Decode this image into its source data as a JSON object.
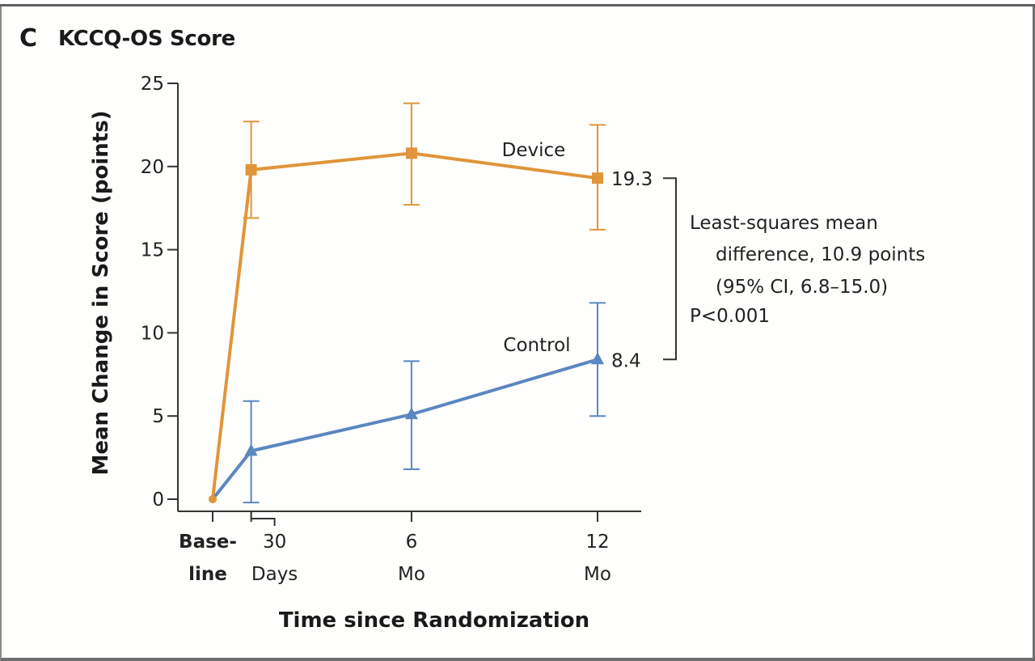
{
  "panel": {
    "letter": "C",
    "title": "KCCQ-OS Score"
  },
  "colors": {
    "device": "#e0953a",
    "control": "#5b87c0",
    "axis": "#333333",
    "text": "#222222"
  },
  "chart_data": {
    "type": "line",
    "title": "KCCQ-OS Score",
    "xlabel": "Time since Randomization",
    "ylabel": "Mean Change in Score (points)",
    "ylim": [
      0,
      25
    ],
    "yticks": [
      0,
      5,
      10,
      15,
      20,
      25
    ],
    "grid": false,
    "categories": [
      {
        "label_line1": "Base-",
        "label_line2": "line",
        "bold": true,
        "months": 0
      },
      {
        "label_line1": "30",
        "label_line2": "Days",
        "bold": false,
        "months": 1.2
      },
      {
        "label_line1": "6",
        "label_line2": "Mo",
        "bold": false,
        "months": 6.2
      },
      {
        "label_line1": "12",
        "label_line2": "Mo",
        "bold": false,
        "months": 12
      }
    ],
    "series": [
      {
        "name": "Device",
        "marker": "square",
        "values": [
          0,
          19.8,
          20.8,
          19.3
        ],
        "ci_low": [
          null,
          16.9,
          17.7,
          16.2
        ],
        "ci_high": [
          null,
          22.7,
          23.8,
          22.5
        ],
        "end_label": "19.3"
      },
      {
        "name": "Control",
        "marker": "triangle",
        "values": [
          0,
          2.9,
          5.1,
          8.4
        ],
        "ci_low": [
          null,
          -0.2,
          1.8,
          5.0
        ],
        "ci_high": [
          null,
          5.9,
          8.3,
          11.8
        ],
        "end_label": "8.4"
      }
    ],
    "annotation": {
      "lines": [
        "Least-squares mean",
        "difference, 10.9 points",
        "(95% CI, 6.8–15.0)",
        "P<0.001"
      ],
      "difference": 10.9,
      "ci": [
        6.8,
        15.0
      ],
      "p_value": "P<0.001"
    }
  }
}
